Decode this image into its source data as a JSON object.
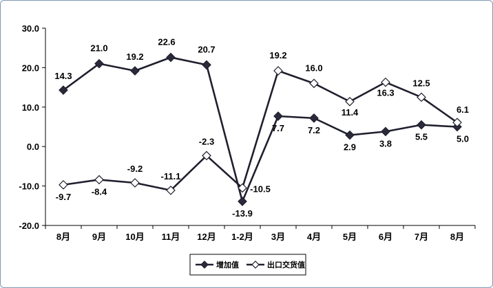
{
  "chart_data": {
    "type": "line",
    "title": "",
    "xlabel": "",
    "ylabel": "",
    "categories": [
      "8月",
      "9月",
      "10月",
      "11月",
      "12月",
      "1-2月",
      "3月",
      "4月",
      "5月",
      "6月",
      "7月",
      "8月"
    ],
    "ylim": [
      -20,
      30
    ],
    "yticks": [
      "30.0",
      "20.0",
      "10.0",
      "0.0",
      "-10.0",
      "-20.0"
    ],
    "grid": false,
    "legend_position": "bottom",
    "series": [
      {
        "name": "增加值",
        "marker": "filled-diamond",
        "color": "#1f1f2e",
        "values": [
          14.3,
          21.0,
          19.2,
          22.6,
          20.7,
          -13.9,
          7.7,
          7.2,
          2.9,
          3.8,
          5.5,
          5.0
        ],
        "labels": [
          "14.3",
          "21.0",
          "19.2",
          "22.6",
          "20.7",
          "-13.9",
          "7.7",
          "7.2",
          "2.9",
          "3.8",
          "5.5",
          "5.0"
        ]
      },
      {
        "name": "出口交货值",
        "marker": "open-diamond",
        "color": "#1f1f2e",
        "values": [
          -9.7,
          -8.4,
          -9.2,
          -11.1,
          -2.3,
          -10.5,
          19.2,
          16.0,
          11.4,
          16.3,
          12.5,
          6.1
        ],
        "labels": [
          "-9.7",
          "-8.4",
          "-9.2",
          "-11.1",
          "-2.3",
          "-10.5",
          "19.2",
          "16.0",
          "11.4",
          "16.3",
          "12.5",
          "6.1"
        ]
      }
    ]
  }
}
